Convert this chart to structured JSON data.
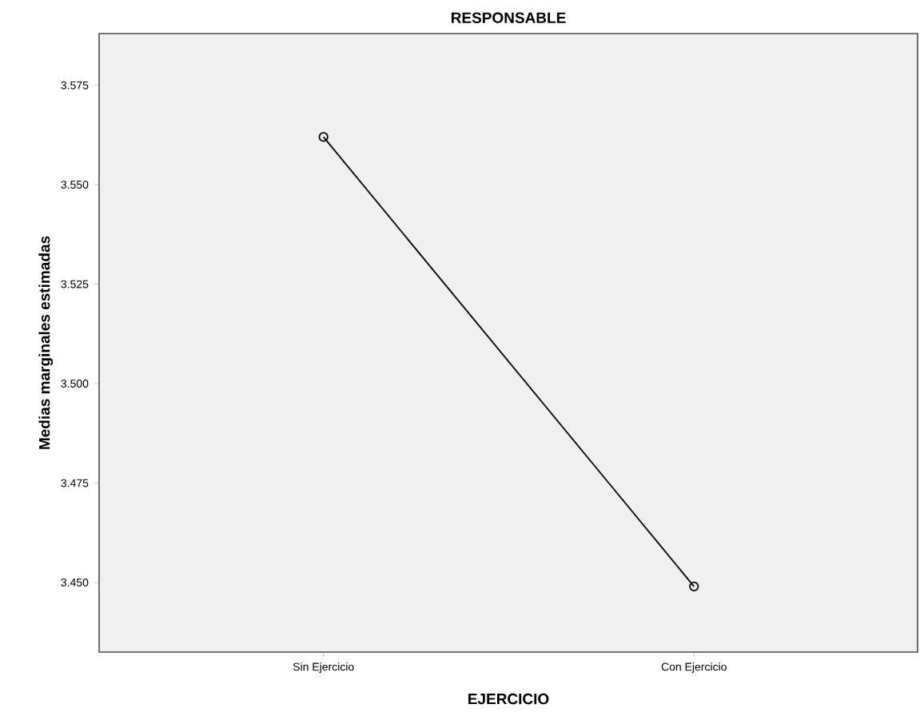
{
  "chart_data": {
    "type": "line",
    "title": "RESPONSABLE",
    "xlabel": "EJERCICIO",
    "ylabel": "Medias marginales estimadas",
    "categories": [
      "Sin Ejercicio",
      "Con Ejercicio"
    ],
    "series": [
      {
        "color": "#000000",
        "values": [
          3.562,
          3.449
        ]
      }
    ],
    "ylim": [
      3.4325,
      3.588
    ],
    "yticks": [
      {
        "value": 3.45,
        "label": "3.450"
      },
      {
        "value": 3.475,
        "label": "3.475"
      },
      {
        "value": 3.5,
        "label": "3.500"
      },
      {
        "value": 3.525,
        "label": "3.525"
      },
      {
        "value": 3.55,
        "label": "3.550"
      },
      {
        "value": 3.575,
        "label": "3.575"
      }
    ],
    "grid": false,
    "marker": "circle",
    "line_style": "solid"
  }
}
